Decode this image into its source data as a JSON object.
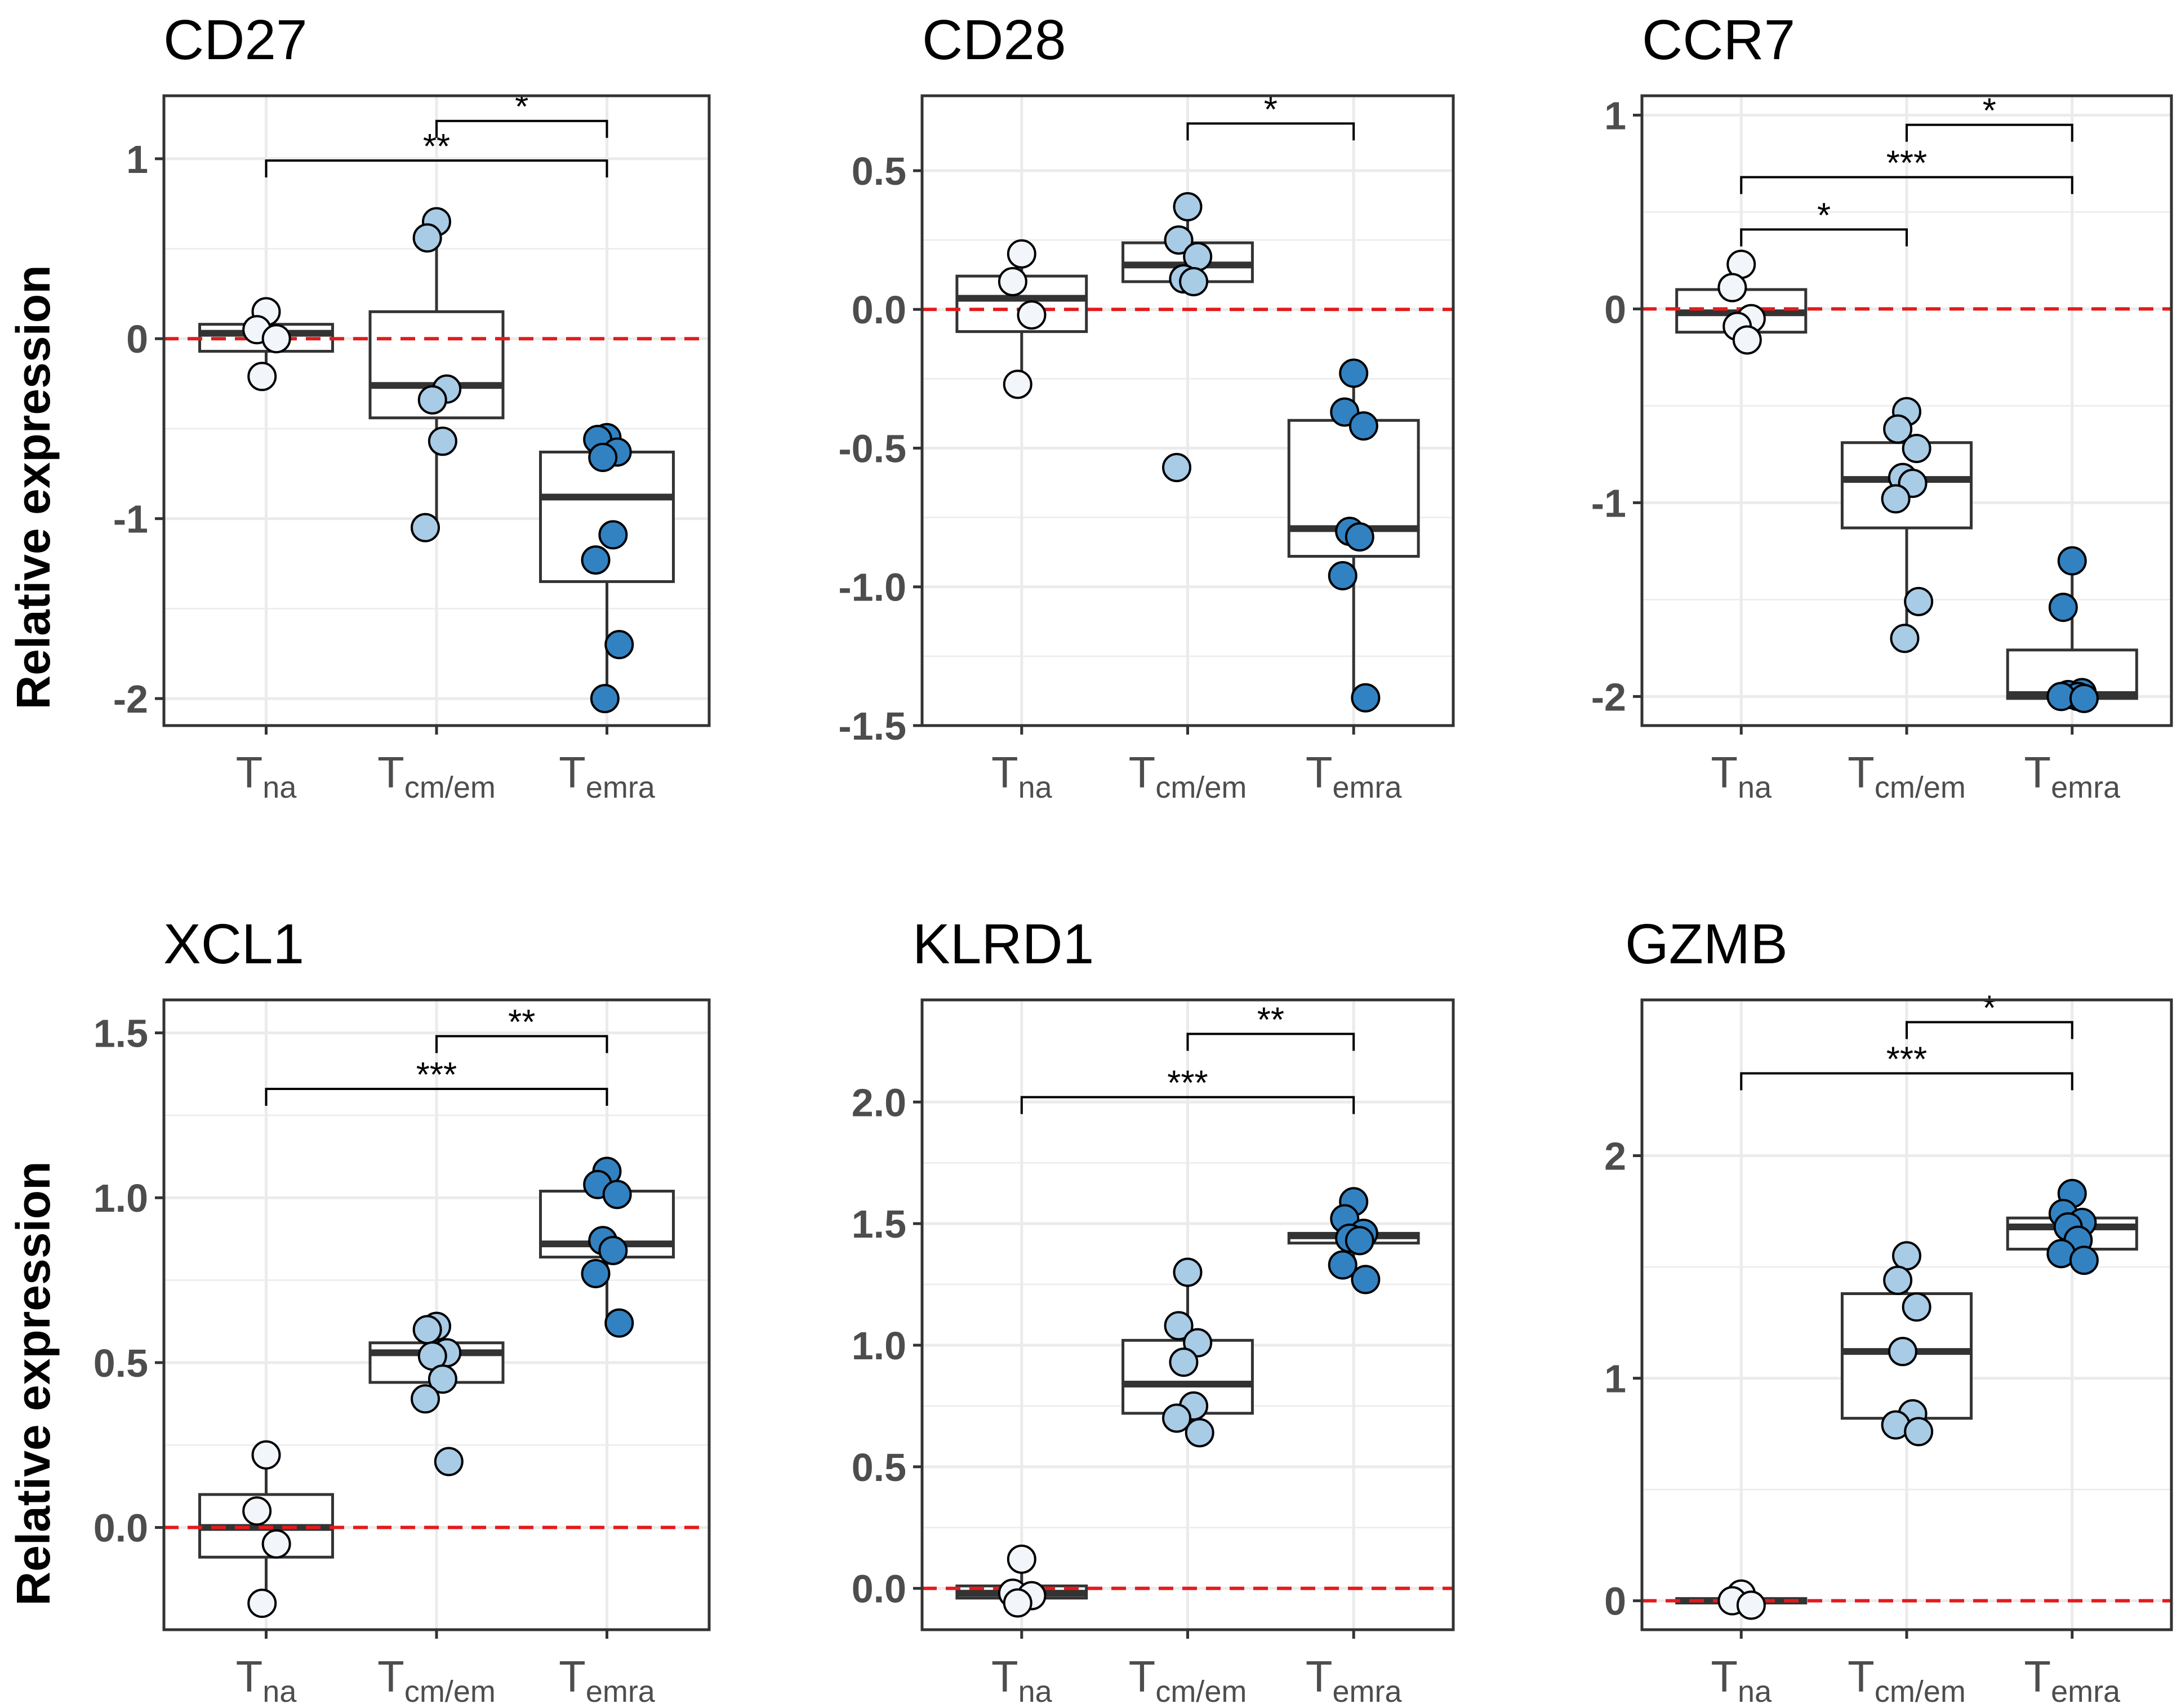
{
  "y_axis_label": "Relative expression",
  "colors": {
    "naive_point": "#f2f5fa",
    "cm_em_point": "#a8cbe6",
    "emra_point": "#3282c2",
    "reference_line": "#e41a1c",
    "box": "#333333",
    "grid": "#ebebeb",
    "panel_border": "#333333"
  },
  "chart_data": [
    {
      "type": "box",
      "title": "CD27",
      "categories": [
        {
          "main": "T",
          "sub": "na"
        },
        {
          "main": "T",
          "sub": "cm/em"
        },
        {
          "main": "T",
          "sub": "emra"
        }
      ],
      "ylim": [
        -2.15,
        1.35
      ],
      "yticks": [
        -2,
        -1,
        0,
        1
      ],
      "yticklabels": [
        "-2",
        "-1",
        "0",
        "1"
      ],
      "grid": true,
      "reference_line": 0,
      "boxes": [
        {
          "q1": -0.07,
          "median": 0.03,
          "q3": 0.08,
          "whisker_low": -0.2,
          "whisker_high": 0.15
        },
        {
          "q1": -0.44,
          "median": -0.26,
          "q3": 0.15,
          "whisker_low": -1.04,
          "whisker_high": 0.65
        },
        {
          "q1": -1.35,
          "median": -0.88,
          "q3": -0.63,
          "whisker_low": -2.0,
          "whisker_high": -0.55
        }
      ],
      "points": [
        [
          0.15,
          0.05,
          0.0,
          -0.21
        ],
        [
          0.65,
          0.56,
          -0.28,
          -0.34,
          -0.57,
          -1.05
        ],
        [
          -0.55,
          -0.56,
          -0.63,
          -0.66,
          -1.09,
          -1.23,
          -1.7,
          -2.0
        ]
      ],
      "comparisons": [
        {
          "from": 1,
          "to": 2,
          "label": "*",
          "y": 1.21
        },
        {
          "from": 0,
          "to": 2,
          "label": "**",
          "y": 0.99
        }
      ]
    },
    {
      "type": "box",
      "title": "CD28",
      "categories": [
        {
          "main": "T",
          "sub": "na"
        },
        {
          "main": "T",
          "sub": "cm/em"
        },
        {
          "main": "T",
          "sub": "emra"
        }
      ],
      "ylim": [
        -1.5,
        0.77
      ],
      "yticks": [
        -1.5,
        -1.0,
        -0.5,
        0.0,
        0.5
      ],
      "yticklabels": [
        "-1.5",
        "-1.0",
        "-0.5",
        "0.0",
        "0.5"
      ],
      "grid": true,
      "reference_line": 0,
      "boxes": [
        {
          "q1": -0.08,
          "median": 0.04,
          "q3": 0.12,
          "whisker_low": -0.26,
          "whisker_high": 0.19
        },
        {
          "q1": 0.1,
          "median": 0.16,
          "q3": 0.24,
          "whisker_low": 0.1,
          "whisker_high": 0.37
        },
        {
          "q1": -0.89,
          "median": -0.79,
          "q3": -0.4,
          "whisker_low": -1.4,
          "whisker_high": -0.23
        }
      ],
      "points": [
        [
          0.2,
          0.1,
          -0.02,
          -0.27
        ],
        [
          0.37,
          0.25,
          0.19,
          0.11,
          0.1,
          -0.57
        ],
        [
          -0.23,
          -0.37,
          -0.42,
          -0.8,
          -0.82,
          -0.96,
          -1.4
        ]
      ],
      "comparisons": [
        {
          "from": 1,
          "to": 2,
          "label": "*",
          "y": 0.67
        }
      ]
    },
    {
      "type": "box",
      "title": "CCR7",
      "categories": [
        {
          "main": "T",
          "sub": "na"
        },
        {
          "main": "T",
          "sub": "cm/em"
        },
        {
          "main": "T",
          "sub": "emra"
        }
      ],
      "ylim": [
        -2.15,
        1.1
      ],
      "yticks": [
        -2,
        -1,
        0,
        1
      ],
      "yticklabels": [
        "-2",
        "-1",
        "0",
        "1"
      ],
      "grid": true,
      "reference_line": 0,
      "boxes": [
        {
          "q1": -0.12,
          "median": -0.02,
          "q3": 0.1,
          "whisker_low": -0.16,
          "whisker_high": 0.23
        },
        {
          "q1": -1.13,
          "median": -0.88,
          "q3": -0.69,
          "whisker_low": -1.7,
          "whisker_high": -0.53
        },
        {
          "q1": -2.01,
          "median": -1.99,
          "q3": -1.76,
          "whisker_low": -2.01,
          "whisker_high": -1.3
        }
      ],
      "points": [
        [
          0.23,
          0.11,
          -0.05,
          -0.09,
          -0.16
        ],
        [
          -0.53,
          -0.62,
          -0.72,
          -0.87,
          -0.9,
          -0.98,
          -1.51,
          -1.7
        ],
        [
          -1.3,
          -1.54,
          -1.98,
          -1.99,
          -2.0,
          -2.0,
          -2.01
        ]
      ],
      "comparisons": [
        {
          "from": 1,
          "to": 2,
          "label": "*",
          "y": 0.95
        },
        {
          "from": 0,
          "to": 2,
          "label": "***",
          "y": 0.68
        },
        {
          "from": 0,
          "to": 1,
          "label": "*",
          "y": 0.41
        }
      ]
    },
    {
      "type": "box",
      "title": "XCL1",
      "categories": [
        {
          "main": "T",
          "sub": "na"
        },
        {
          "main": "T",
          "sub": "cm/em"
        },
        {
          "main": "T",
          "sub": "emra"
        }
      ],
      "ylim": [
        -0.31,
        1.6
      ],
      "yticks": [
        0.0,
        0.5,
        1.0,
        1.5
      ],
      "yticklabels": [
        "0.0",
        "0.5",
        "1.0",
        "1.5"
      ],
      "grid": true,
      "reference_line": 0,
      "boxes": [
        {
          "q1": -0.09,
          "median": 0.0,
          "q3": 0.1,
          "whisker_low": -0.23,
          "whisker_high": 0.22
        },
        {
          "q1": 0.44,
          "median": 0.53,
          "q3": 0.56,
          "whisker_low": 0.44,
          "whisker_high": 0.61
        },
        {
          "q1": 0.82,
          "median": 0.86,
          "q3": 1.02,
          "whisker_low": 0.62,
          "whisker_high": 1.08
        }
      ],
      "points": [
        [
          0.22,
          0.05,
          -0.05,
          -0.23
        ],
        [
          0.61,
          0.6,
          0.53,
          0.52,
          0.45,
          0.39,
          0.2
        ],
        [
          1.08,
          1.04,
          1.01,
          0.87,
          0.84,
          0.77,
          0.62
        ]
      ],
      "comparisons": [
        {
          "from": 1,
          "to": 2,
          "label": "**",
          "y": 1.49
        },
        {
          "from": 0,
          "to": 2,
          "label": "***",
          "y": 1.33
        }
      ]
    },
    {
      "type": "box",
      "title": "KLRD1",
      "categories": [
        {
          "main": "T",
          "sub": "na"
        },
        {
          "main": "T",
          "sub": "cm/em"
        },
        {
          "main": "T",
          "sub": "emra"
        }
      ],
      "ylim": [
        -0.17,
        2.42
      ],
      "yticks": [
        0.0,
        0.5,
        1.0,
        1.5,
        2.0
      ],
      "yticklabels": [
        "0.0",
        "0.5",
        "1.0",
        "1.5",
        "2.0"
      ],
      "grid": true,
      "reference_line": 0,
      "boxes": [
        {
          "q1": -0.04,
          "median": -0.02,
          "q3": 0.01,
          "whisker_low": -0.04,
          "whisker_high": 0.12
        },
        {
          "q1": 0.72,
          "median": 0.84,
          "q3": 1.02,
          "whisker_low": 0.72,
          "whisker_high": 1.3
        },
        {
          "q1": 1.42,
          "median": 1.45,
          "q3": 1.46,
          "whisker_low": 1.27,
          "whisker_high": 1.59
        }
      ],
      "points": [
        [
          0.12,
          -0.02,
          -0.03,
          -0.06
        ],
        [
          1.3,
          1.08,
          1.01,
          0.93,
          0.75,
          0.7,
          0.64
        ],
        [
          1.59,
          1.52,
          1.46,
          1.44,
          1.43,
          1.33,
          1.27
        ]
      ],
      "comparisons": [
        {
          "from": 1,
          "to": 2,
          "label": "**",
          "y": 2.28
        },
        {
          "from": 0,
          "to": 2,
          "label": "***",
          "y": 2.02
        }
      ]
    },
    {
      "type": "box",
      "title": "GZMB",
      "categories": [
        {
          "main": "T",
          "sub": "na"
        },
        {
          "main": "T",
          "sub": "cm/em"
        },
        {
          "main": "T",
          "sub": "emra"
        }
      ],
      "ylim": [
        -0.13,
        2.7
      ],
      "yticks": [
        0,
        1,
        2
      ],
      "yticklabels": [
        "0",
        "1",
        "2"
      ],
      "grid": true,
      "reference_line": 0,
      "boxes": [
        {
          "q1": -0.01,
          "median": 0.0,
          "q3": 0.01,
          "whisker_low": -0.02,
          "whisker_high": 0.03
        },
        {
          "q1": 0.82,
          "median": 1.12,
          "q3": 1.38,
          "whisker_low": 0.76,
          "whisker_high": 1.55
        },
        {
          "q1": 1.58,
          "median": 1.68,
          "q3": 1.72,
          "whisker_low": 1.52,
          "whisker_high": 1.83
        }
      ],
      "points": [
        [
          0.03,
          0.0,
          -0.02
        ],
        [
          1.55,
          1.44,
          1.32,
          1.12,
          0.84,
          0.79,
          0.76
        ],
        [
          1.83,
          1.74,
          1.7,
          1.68,
          1.62,
          1.56,
          1.53
        ]
      ],
      "comparisons": [
        {
          "from": 1,
          "to": 2,
          "label": "*",
          "y": 2.6
        },
        {
          "from": 0,
          "to": 2,
          "label": "***",
          "y": 2.37
        }
      ]
    }
  ]
}
